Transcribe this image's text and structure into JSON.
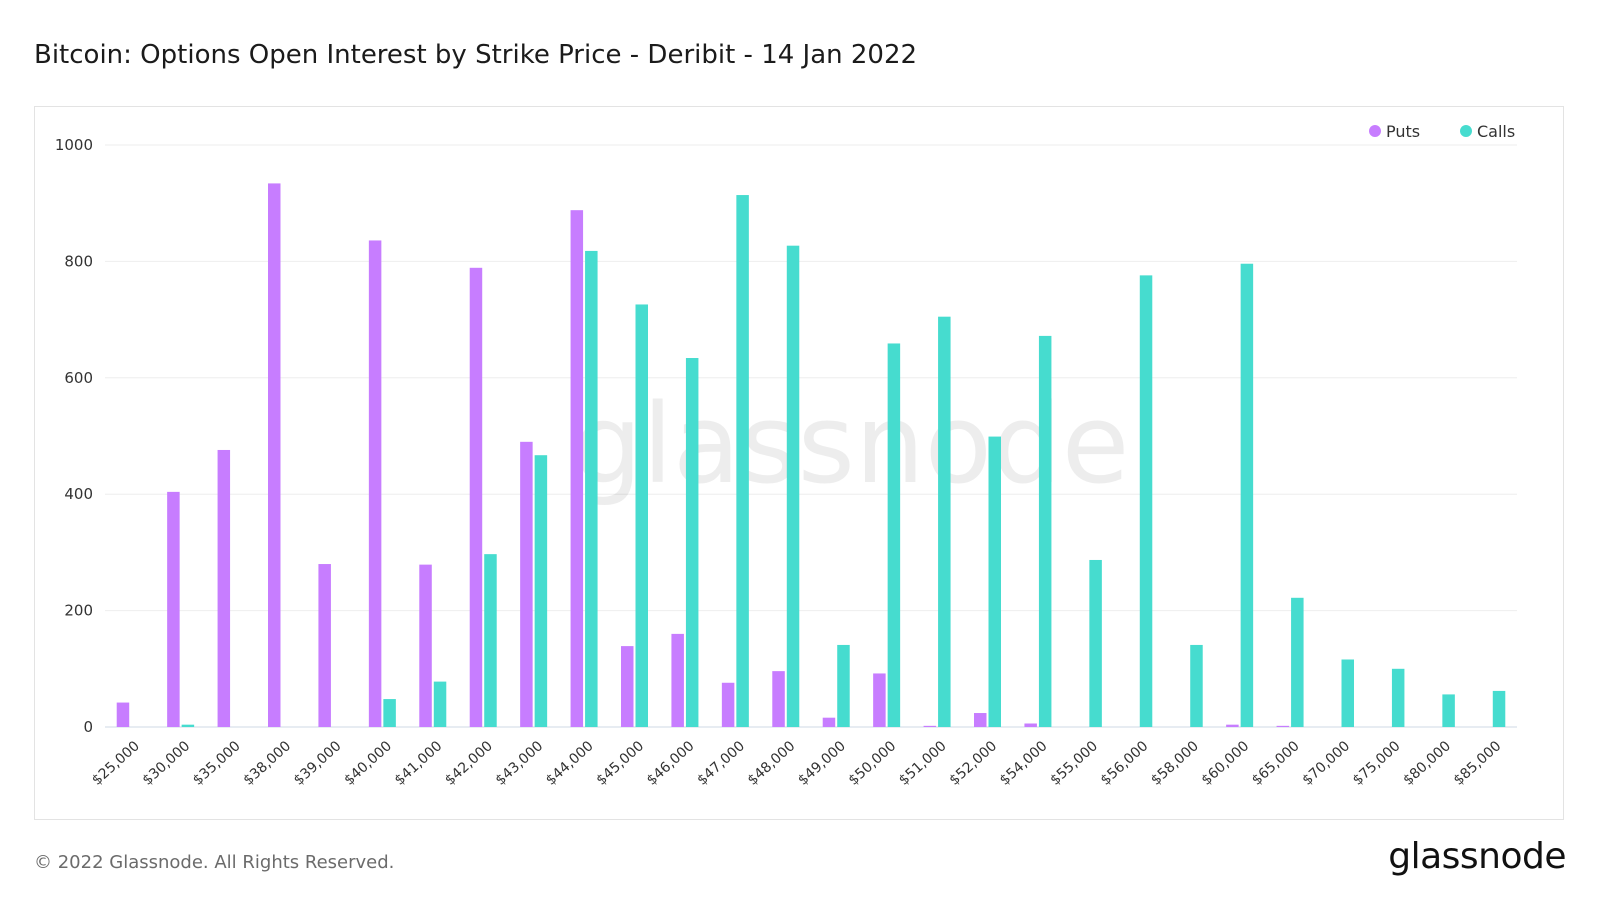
{
  "page": {
    "title": "Bitcoin: Options Open Interest by Strike Price - Deribit - 14 Jan 2022",
    "watermark": "glassnode",
    "footer": "© 2022 Glassnode. All Rights Reserved.",
    "brand": "glassnode"
  },
  "colors": {
    "puts": "#c77dff",
    "calls": "#46dccf",
    "grid": "#eeeeee",
    "axis_text": "#333333"
  },
  "chart_data": {
    "type": "bar",
    "title": "Bitcoin: Options Open Interest by Strike Price - Deribit - 14 Jan 2022",
    "xlabel": "",
    "ylabel": "",
    "ylim": [
      0,
      1000
    ],
    "yticks": [
      0,
      200,
      400,
      600,
      800,
      1000
    ],
    "grid": true,
    "legend_position": "top-right",
    "categories": [
      "$25,000",
      "$30,000",
      "$35,000",
      "$38,000",
      "$39,000",
      "$40,000",
      "$41,000",
      "$42,000",
      "$43,000",
      "$44,000",
      "$45,000",
      "$46,000",
      "$47,000",
      "$48,000",
      "$49,000",
      "$50,000",
      "$51,000",
      "$52,000",
      "$54,000",
      "$55,000",
      "$56,000",
      "$58,000",
      "$60,000",
      "$65,000",
      "$70,000",
      "$75,000",
      "$80,000",
      "$85,000"
    ],
    "series": [
      {
        "name": "Puts",
        "color": "#c77dff",
        "values": [
          42,
          404,
          476,
          934,
          280,
          836,
          279,
          789,
          490,
          888,
          139,
          160,
          76,
          96,
          16,
          92,
          2,
          24,
          6,
          0,
          0,
          0,
          4,
          2,
          0,
          0,
          0,
          0
        ]
      },
      {
        "name": "Calls",
        "color": "#46dccf",
        "values": [
          0,
          4,
          0,
          0,
          0,
          48,
          78,
          297,
          467,
          818,
          726,
          634,
          914,
          827,
          141,
          659,
          705,
          499,
          672,
          287,
          776,
          141,
          796,
          222,
          116,
          100,
          56,
          62
        ]
      }
    ]
  }
}
